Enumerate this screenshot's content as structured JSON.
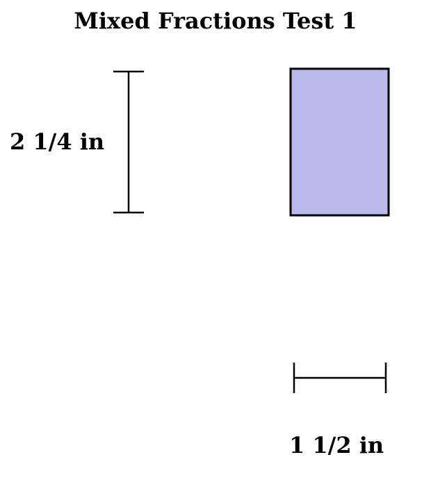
{
  "title": "Mixed Fractions Test 1",
  "measurements": {
    "height_label": "2 1/4 in",
    "width_label": "1 1/2 in"
  },
  "rectangle": {
    "fill_color": "#babaea",
    "stroke_color": "#000000"
  }
}
